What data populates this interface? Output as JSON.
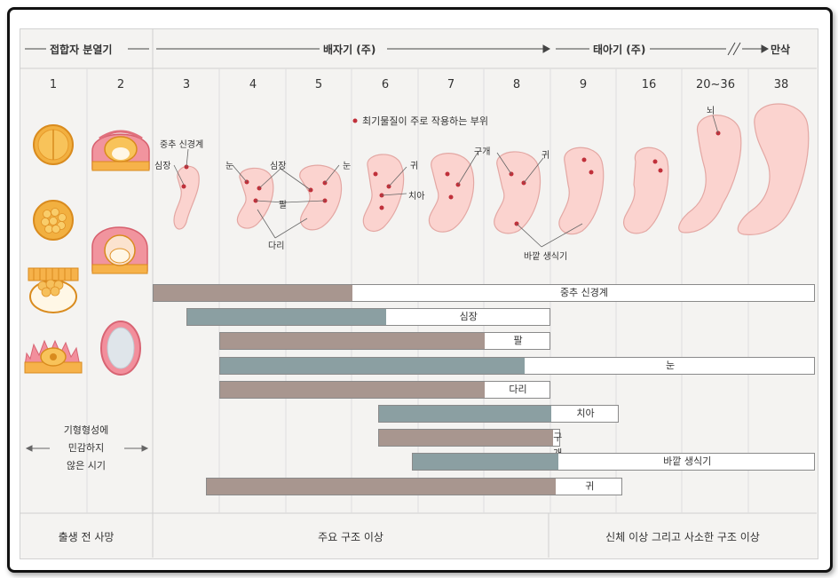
{
  "header": {
    "segments": [
      {
        "label": "접합자 분열기"
      },
      {
        "label": "배자기 (주)"
      },
      {
        "label": "태아기 (주)"
      },
      {
        "label": "만삭"
      }
    ],
    "weeks": [
      "1",
      "2",
      "3",
      "4",
      "5",
      "6",
      "7",
      "8",
      "9",
      "16",
      "20~36",
      "38"
    ]
  },
  "legend_note": "최기물질이 주로 작용하는 부위",
  "embryo_labels": {
    "l1": "중추 신경계",
    "l2": "심장",
    "l3": "눈",
    "l4": "심장",
    "l5": "눈",
    "l6": "팔",
    "l7": "다리",
    "l8": "귀",
    "l9": "치아",
    "l10": "구개",
    "l11": "귀",
    "l12": "바깥 생식기",
    "l13": "뇌"
  },
  "left_note": {
    "line1": "기형형성에",
    "line2": "민감하지",
    "line3": "않은 시기"
  },
  "bars": [
    {
      "label": "중추 신경계",
      "start": 3,
      "sensitive_end": 6.0,
      "end": 38,
      "color": "#a8968f"
    },
    {
      "label": "심장",
      "start": 3.5,
      "sensitive_end": 6.5,
      "end": 9,
      "color": "#8b9fa2"
    },
    {
      "label": "팔",
      "start": 4,
      "sensitive_end": 8,
      "end": 9,
      "color": "#a8968f"
    },
    {
      "label": "눈",
      "start": 4,
      "sensitive_end": 8.6,
      "end": 38,
      "color": "#8b9fa2"
    },
    {
      "label": "다리",
      "start": 4,
      "sensitive_end": 8,
      "end": 9,
      "color": "#a8968f"
    },
    {
      "label": "치아",
      "start": 6.4,
      "sensitive_end": 9,
      "end": 16.5,
      "color": "#8b9fa2"
    },
    {
      "label": "구개",
      "start": 6.4,
      "sensitive_end": 9.2,
      "end": 10,
      "color": "#a8968f"
    },
    {
      "label": "바깥 생식기",
      "start": 6.9,
      "sensitive_end": 9.8,
      "end": 38,
      "color": "#8b9fa2"
    },
    {
      "label": "귀",
      "start": 3.8,
      "sensitive_end": 9.5,
      "end": 17.2,
      "color": "#a8968f"
    }
  ],
  "footer": {
    "c1": "출생 전 사망",
    "c2": "주요 구조 이상",
    "c3": "신체 이상 그리고 사소한 구조 이상"
  }
}
